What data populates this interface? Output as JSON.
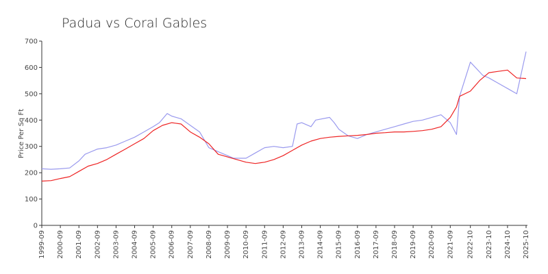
{
  "chart_data": {
    "type": "line",
    "title": "Padua vs Coral Gables",
    "xlabel": "",
    "ylabel": "Price Per Sq Ft",
    "ylim": [
      0,
      700
    ],
    "yticks": [
      0,
      100,
      200,
      300,
      400,
      500,
      600,
      700
    ],
    "xlim": [
      "1999-09",
      "2025-10"
    ],
    "xticks": [
      "1999-09",
      "2000-09",
      "2001-09",
      "2002-09",
      "2003-09",
      "2004-09",
      "2005-09",
      "2006-09",
      "2007-09",
      "2008-09",
      "2009-09",
      "2010-09",
      "2011-09",
      "2012-09",
      "2013-09",
      "2014-09",
      "2015-09",
      "2016-09",
      "2017-09",
      "2018-09",
      "2019-09",
      "2020-09",
      "2021-09",
      "2022-10",
      "2023-10",
      "2024-10",
      "2025-10"
    ],
    "grid": false,
    "legend": "none",
    "series": [
      {
        "color": "#9999ee",
        "points": [
          [
            "1999-09",
            215
          ],
          [
            "2000-03",
            213
          ],
          [
            "2000-09",
            215
          ],
          [
            "2001-03",
            218
          ],
          [
            "2001-09",
            245
          ],
          [
            "2002-01",
            270
          ],
          [
            "2002-09",
            290
          ],
          [
            "2003-03",
            295
          ],
          [
            "2003-09",
            305
          ],
          [
            "2004-03",
            320
          ],
          [
            "2004-09",
            335
          ],
          [
            "2005-03",
            355
          ],
          [
            "2005-09",
            375
          ],
          [
            "2006-01",
            390
          ],
          [
            "2006-06",
            425
          ],
          [
            "2006-09",
            415
          ],
          [
            "2007-03",
            405
          ],
          [
            "2007-09",
            380
          ],
          [
            "2008-03",
            355
          ],
          [
            "2008-09",
            295
          ],
          [
            "2009-03",
            280
          ],
          [
            "2009-09",
            265
          ],
          [
            "2010-01",
            255
          ],
          [
            "2010-09",
            255
          ],
          [
            "2011-03",
            275
          ],
          [
            "2011-09",
            295
          ],
          [
            "2012-03",
            300
          ],
          [
            "2012-09",
            295
          ],
          [
            "2013-03",
            300
          ],
          [
            "2013-06",
            385
          ],
          [
            "2013-09",
            390
          ],
          [
            "2014-03",
            375
          ],
          [
            "2014-06",
            400
          ],
          [
            "2015-03",
            410
          ],
          [
            "2015-06",
            390
          ],
          [
            "2015-09",
            365
          ],
          [
            "2016-03",
            340
          ],
          [
            "2016-09",
            330
          ],
          [
            "2017-03",
            345
          ],
          [
            "2017-09",
            355
          ],
          [
            "2018-03",
            365
          ],
          [
            "2018-09",
            375
          ],
          [
            "2019-03",
            385
          ],
          [
            "2019-09",
            395
          ],
          [
            "2020-03",
            400
          ],
          [
            "2020-09",
            410
          ],
          [
            "2021-03",
            420
          ],
          [
            "2021-09",
            390
          ],
          [
            "2022-01",
            345
          ],
          [
            "2022-03",
            490
          ],
          [
            "2022-10",
            620
          ],
          [
            "2023-06",
            570
          ],
          [
            "2023-10",
            560
          ],
          [
            "2024-04",
            540
          ],
          [
            "2024-10",
            520
          ],
          [
            "2025-04",
            500
          ],
          [
            "2025-10",
            660
          ]
        ]
      },
      {
        "color": "#ee2222",
        "points": [
          [
            "1999-09",
            168
          ],
          [
            "2000-03",
            170
          ],
          [
            "2000-09",
            178
          ],
          [
            "2001-03",
            185
          ],
          [
            "2001-09",
            205
          ],
          [
            "2002-03",
            225
          ],
          [
            "2002-09",
            235
          ],
          [
            "2003-03",
            250
          ],
          [
            "2003-09",
            270
          ],
          [
            "2004-03",
            290
          ],
          [
            "2004-09",
            310
          ],
          [
            "2005-03",
            330
          ],
          [
            "2005-09",
            360
          ],
          [
            "2006-03",
            380
          ],
          [
            "2006-09",
            390
          ],
          [
            "2007-03",
            385
          ],
          [
            "2007-09",
            355
          ],
          [
            "2008-03",
            335
          ],
          [
            "2008-09",
            310
          ],
          [
            "2009-03",
            270
          ],
          [
            "2009-09",
            260
          ],
          [
            "2010-03",
            250
          ],
          [
            "2010-09",
            240
          ],
          [
            "2011-03",
            235
          ],
          [
            "2011-09",
            240
          ],
          [
            "2012-03",
            250
          ],
          [
            "2012-09",
            265
          ],
          [
            "2013-03",
            285
          ],
          [
            "2013-09",
            305
          ],
          [
            "2014-03",
            320
          ],
          [
            "2014-09",
            330
          ],
          [
            "2015-03",
            335
          ],
          [
            "2015-09",
            338
          ],
          [
            "2016-03",
            340
          ],
          [
            "2016-09",
            342
          ],
          [
            "2017-03",
            345
          ],
          [
            "2017-09",
            350
          ],
          [
            "2018-03",
            352
          ],
          [
            "2018-09",
            355
          ],
          [
            "2019-03",
            355
          ],
          [
            "2019-09",
            357
          ],
          [
            "2020-03",
            360
          ],
          [
            "2020-09",
            365
          ],
          [
            "2021-03",
            375
          ],
          [
            "2021-09",
            410
          ],
          [
            "2022-01",
            450
          ],
          [
            "2022-03",
            490
          ],
          [
            "2022-10",
            510
          ],
          [
            "2023-04",
            550
          ],
          [
            "2023-10",
            580
          ],
          [
            "2024-04",
            585
          ],
          [
            "2024-10",
            590
          ],
          [
            "2025-04",
            560
          ],
          [
            "2025-10",
            558
          ]
        ]
      }
    ]
  }
}
